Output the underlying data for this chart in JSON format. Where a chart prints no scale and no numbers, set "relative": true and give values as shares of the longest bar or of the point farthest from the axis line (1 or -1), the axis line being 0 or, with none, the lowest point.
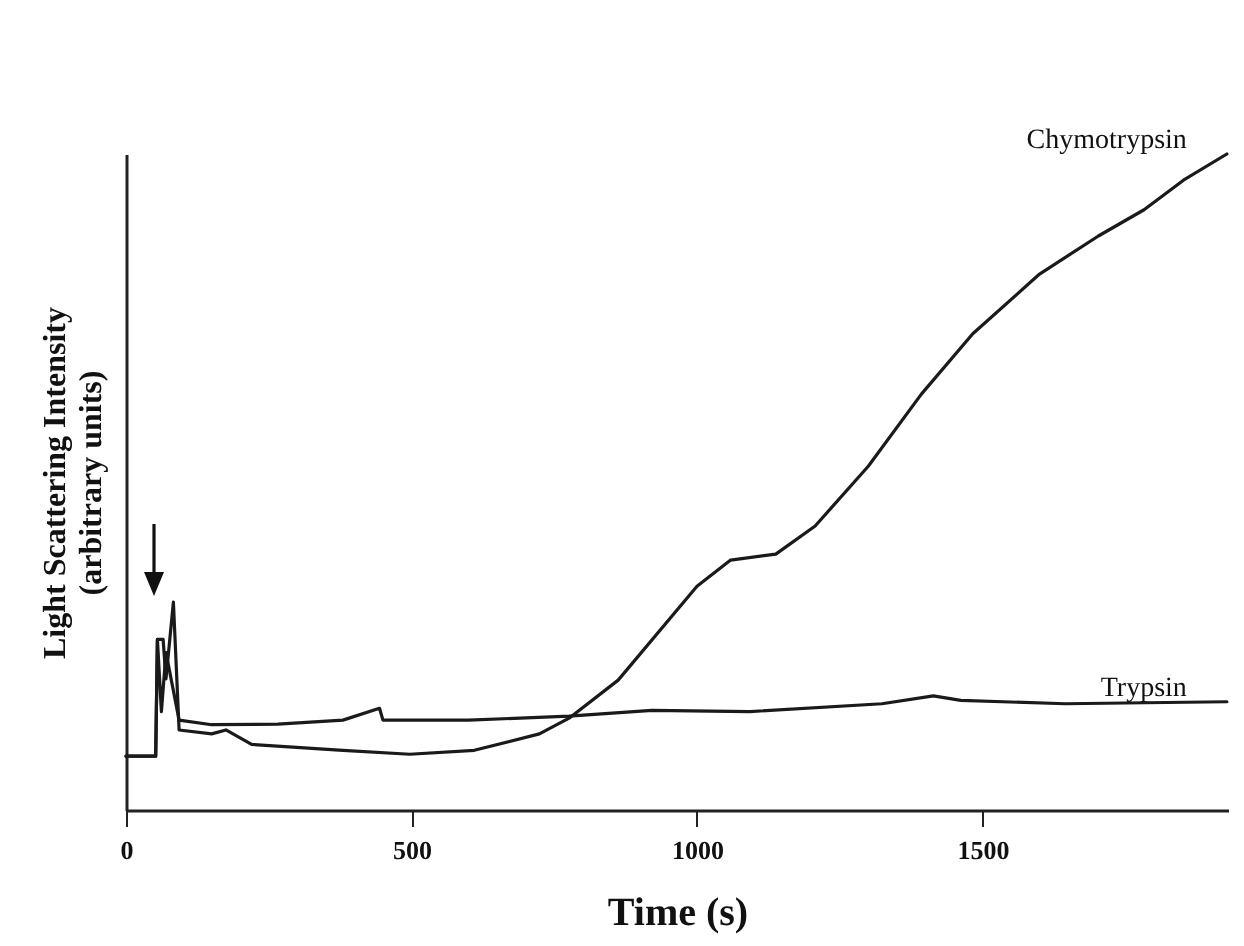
{
  "chart_data": {
    "type": "line",
    "xlabel": "Time (s)",
    "ylabel": "Light Scattering Intensity\n(arbitrary units)",
    "relative": true,
    "xlim": [
      0,
      1930
    ],
    "xticks": [
      0,
      500,
      1000,
      1500
    ],
    "grid": false,
    "legend": false,
    "marker": "none",
    "line_style": "solid",
    "series": [
      {
        "name": "Chymotrypsin",
        "color": "#1a1a1a",
        "x": [
          0,
          52,
          55,
          65,
          70,
          83,
          93,
          150,
          175,
          220,
          380,
          497,
          610,
          724,
          776,
          862,
          1000,
          1059,
          1138,
          1207,
          1300,
          1393,
          1483,
          1600,
          1703,
          1783,
          1852,
          1928
        ],
        "values": [
          0.082,
          0.082,
          0.26,
          0.26,
          0.2,
          0.317,
          0.122,
          0.116,
          0.122,
          0.1,
          0.091,
          0.085,
          0.091,
          0.116,
          0.14,
          0.198,
          0.341,
          0.381,
          0.39,
          0.433,
          0.524,
          0.634,
          0.726,
          0.817,
          0.875,
          0.915,
          0.96,
          1
        ]
      },
      {
        "name": "Trypsin",
        "color": "#1a1a1a",
        "x": [
          0,
          52,
          55,
          62,
          70,
          93,
          150,
          266,
          380,
          444,
          450,
          600,
          776,
          921,
          1093,
          1324,
          1414,
          1462,
          1645,
          1928
        ],
        "values": [
          0.082,
          0.082,
          0.26,
          0.15,
          0.24,
          0.137,
          0.13,
          0.131,
          0.137,
          0.155,
          0.137,
          0.137,
          0.143,
          0.152,
          0.15,
          0.162,
          0.174,
          0.167,
          0.162,
          0.165
        ]
      }
    ]
  }
}
